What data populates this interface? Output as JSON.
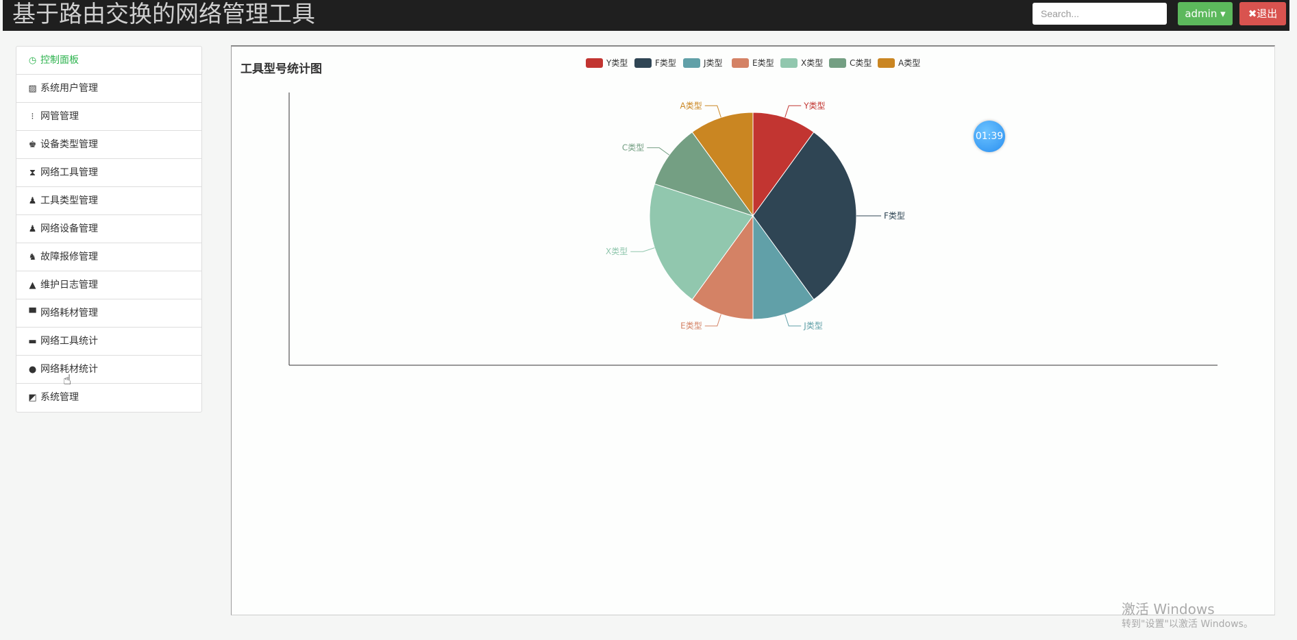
{
  "header": {
    "title": "基于路由交换的网络管理工具",
    "search_placeholder": "Search...",
    "user_label": "admin ▾",
    "logout_label": "✖退出"
  },
  "sidebar": {
    "items": [
      {
        "label": "控制面板",
        "icon": "dashboard-icon",
        "glyph": "◷"
      },
      {
        "label": "系统用户管理",
        "icon": "picture-icon",
        "glyph": "▨"
      },
      {
        "label": "网管管理",
        "icon": "tasks-icon",
        "glyph": "⁝"
      },
      {
        "label": "设备类型管理",
        "icon": "chess-king-icon",
        "glyph": "♚"
      },
      {
        "label": "网络工具管理",
        "icon": "hourglass-icon",
        "glyph": "⧗"
      },
      {
        "label": "工具类型管理",
        "icon": "pawn-icon",
        "glyph": "♟"
      },
      {
        "label": "网络设备管理",
        "icon": "pawn-icon",
        "glyph": "♟"
      },
      {
        "label": "故障报修管理",
        "icon": "knight-icon",
        "glyph": "♞"
      },
      {
        "label": "维护日志管理",
        "icon": "tent-icon",
        "glyph": "▲"
      },
      {
        "label": "网络耗材管理",
        "icon": "cart-icon",
        "glyph": "▀"
      },
      {
        "label": "网络工具统计",
        "icon": "bus-icon",
        "glyph": "▬"
      },
      {
        "label": "网络耗材统计",
        "icon": "apple-icon",
        "glyph": "●"
      },
      {
        "label": "系统管理",
        "icon": "eraser-icon",
        "glyph": "◩"
      }
    ]
  },
  "active_color": "#2bb24c",
  "timer": "01:39",
  "watermark": {
    "line1": "激活 Windows",
    "line2": "转到\"设置\"以激活 Windows。"
  },
  "chart_data": {
    "type": "pie",
    "title": "工具型号统计图",
    "legend_position": "top",
    "categories": [
      "Y类型",
      "F类型",
      "J类型",
      "E类型",
      "X类型",
      "C类型",
      "A类型"
    ],
    "values": [
      1,
      3,
      1,
      1,
      2,
      1,
      1
    ],
    "colors": [
      "#c23531",
      "#2f4554",
      "#61a0a8",
      "#d48265",
      "#91c7ae",
      "#749f83",
      "#ca8622"
    ]
  }
}
